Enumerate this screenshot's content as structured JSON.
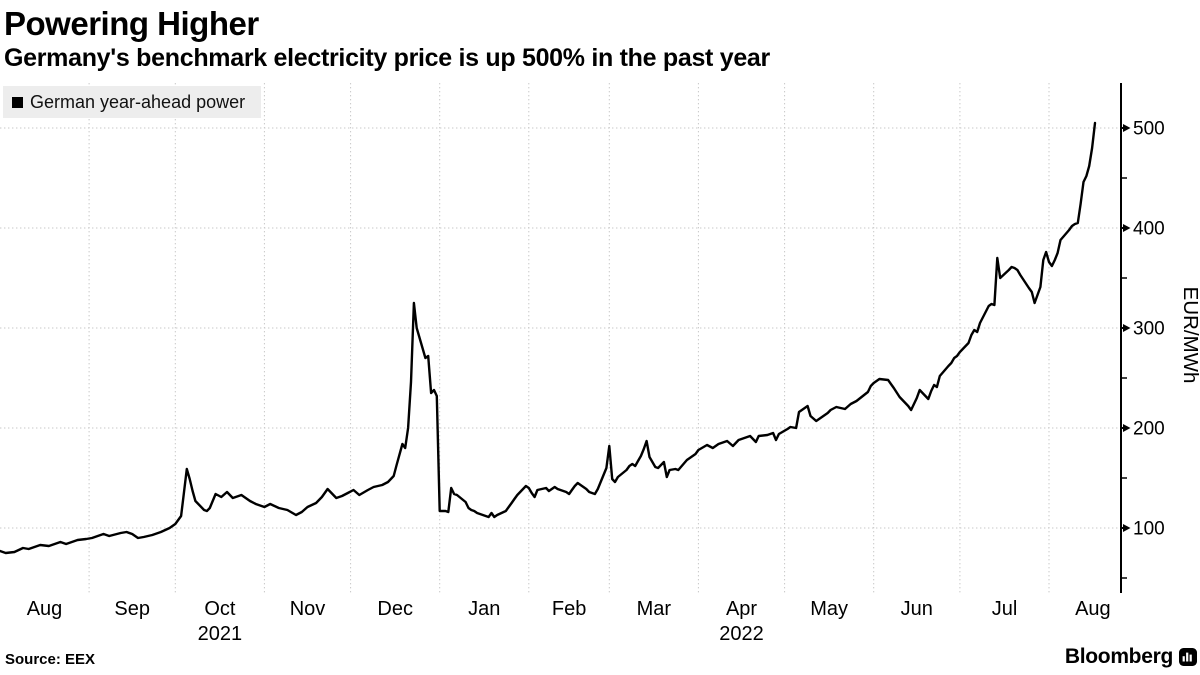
{
  "header": {
    "title": "Powering Higher",
    "subtitle": "Germany's benchmark electricity price is up 500% in the past year"
  },
  "legend": {
    "swatch_icon": "black-square",
    "label": "German year-ahead power"
  },
  "footer": {
    "source": "Source: EEX",
    "brand": "Bloomberg",
    "brand_icon": "bloomberg-terminal-icon"
  },
  "colors": {
    "background": "#ffffff",
    "line": "#000000",
    "grid": "#c7c7c7",
    "axis": "#000000",
    "legend_bg": "#ededed",
    "text": "#000000"
  },
  "chart_data": {
    "type": "line",
    "title": "Powering Higher",
    "subtitle": "Germany's benchmark electricity price is up 500% in the past year",
    "series_name": "German year-ahead power",
    "unit": "EUR/MWh",
    "ylabel": "EUR/MWh",
    "legend_position": "top-left",
    "grid": "dotted",
    "y_axis": {
      "side": "right",
      "ticks": [
        100,
        200,
        300,
        400,
        500
      ],
      "minor_ticks": [
        50,
        150,
        250,
        350,
        450
      ],
      "range_shown": [
        35,
        545
      ]
    },
    "x_axis": {
      "start": "2021-08-01",
      "end": "2022-08-17",
      "month_labels": [
        "Aug",
        "Sep",
        "Oct",
        "Nov",
        "Dec",
        "Jan",
        "Feb",
        "Mar",
        "Apr",
        "May",
        "Jun",
        "Jul",
        "Aug"
      ],
      "year_labels": [
        {
          "text": "2021",
          "month_index": 2
        },
        {
          "text": "2022",
          "month_index": 8
        }
      ]
    },
    "points": [
      [
        "2021-08-01",
        77
      ],
      [
        "2021-08-03",
        75
      ],
      [
        "2021-08-06",
        76
      ],
      [
        "2021-08-09",
        80
      ],
      [
        "2021-08-11",
        79
      ],
      [
        "2021-08-15",
        83
      ],
      [
        "2021-08-18",
        82
      ],
      [
        "2021-08-22",
        86
      ],
      [
        "2021-08-24",
        84
      ],
      [
        "2021-08-28",
        88
      ],
      [
        "2021-08-31",
        89
      ],
      [
        "2021-09-02",
        90
      ],
      [
        "2021-09-04",
        92
      ],
      [
        "2021-09-06",
        94
      ],
      [
        "2021-09-08",
        92
      ],
      [
        "2021-09-12",
        95
      ],
      [
        "2021-09-14",
        96
      ],
      [
        "2021-09-16",
        94
      ],
      [
        "2021-09-18",
        90
      ],
      [
        "2021-09-20",
        91
      ],
      [
        "2021-09-23",
        93
      ],
      [
        "2021-09-26",
        96
      ],
      [
        "2021-09-29",
        100
      ],
      [
        "2021-10-01",
        104
      ],
      [
        "2021-10-03",
        112
      ],
      [
        "2021-10-04",
        135
      ],
      [
        "2021-10-05",
        159
      ],
      [
        "2021-10-06",
        149
      ],
      [
        "2021-10-07",
        137
      ],
      [
        "2021-10-08",
        127
      ],
      [
        "2021-10-11",
        118
      ],
      [
        "2021-10-12",
        117
      ],
      [
        "2021-10-13",
        120
      ],
      [
        "2021-10-15",
        134
      ],
      [
        "2021-10-17",
        131
      ],
      [
        "2021-10-19",
        136
      ],
      [
        "2021-10-21",
        130
      ],
      [
        "2021-10-24",
        133
      ],
      [
        "2021-10-27",
        127
      ],
      [
        "2021-10-29",
        124
      ],
      [
        "2021-11-01",
        121
      ],
      [
        "2021-11-03",
        124
      ],
      [
        "2021-11-06",
        120
      ],
      [
        "2021-11-09",
        118
      ],
      [
        "2021-11-12",
        113
      ],
      [
        "2021-11-14",
        116
      ],
      [
        "2021-11-16",
        121
      ],
      [
        "2021-11-19",
        125
      ],
      [
        "2021-11-21",
        131
      ],
      [
        "2021-11-23",
        139
      ],
      [
        "2021-11-26",
        130
      ],
      [
        "2021-11-28",
        132
      ],
      [
        "2021-11-30",
        135
      ],
      [
        "2021-12-02",
        138
      ],
      [
        "2021-12-04",
        133
      ],
      [
        "2021-12-07",
        138
      ],
      [
        "2021-12-09",
        141
      ],
      [
        "2021-12-12",
        143
      ],
      [
        "2021-12-14",
        146
      ],
      [
        "2021-12-16",
        152
      ],
      [
        "2021-12-17",
        163
      ],
      [
        "2021-12-19",
        184
      ],
      [
        "2021-12-20",
        180
      ],
      [
        "2021-12-21",
        200
      ],
      [
        "2021-12-22",
        246
      ],
      [
        "2021-12-23",
        325
      ],
      [
        "2021-12-24",
        300
      ],
      [
        "2021-12-27",
        270
      ],
      [
        "2021-12-28",
        272
      ],
      [
        "2021-12-29",
        235
      ],
      [
        "2021-12-30",
        238
      ],
      [
        "2021-12-31",
        232
      ],
      [
        "2022-01-01",
        117
      ],
      [
        "2022-01-03",
        117
      ],
      [
        "2022-01-04",
        116
      ],
      [
        "2022-01-05",
        140
      ],
      [
        "2022-01-06",
        134
      ],
      [
        "2022-01-07",
        133
      ],
      [
        "2022-01-10",
        126
      ],
      [
        "2022-01-11",
        120
      ],
      [
        "2022-01-12",
        118
      ],
      [
        "2022-01-13",
        117
      ],
      [
        "2022-01-14",
        115
      ],
      [
        "2022-01-17",
        112
      ],
      [
        "2022-01-18",
        111
      ],
      [
        "2022-01-19",
        115
      ],
      [
        "2022-01-20",
        111
      ],
      [
        "2022-01-21",
        113
      ],
      [
        "2022-01-24",
        117
      ],
      [
        "2022-01-25",
        121
      ],
      [
        "2022-01-26",
        125
      ],
      [
        "2022-01-27",
        129
      ],
      [
        "2022-01-28",
        133
      ],
      [
        "2022-01-31",
        142
      ],
      [
        "2022-02-01",
        140
      ],
      [
        "2022-02-02",
        135
      ],
      [
        "2022-02-03",
        131
      ],
      [
        "2022-02-04",
        138
      ],
      [
        "2022-02-07",
        140
      ],
      [
        "2022-02-08",
        137
      ],
      [
        "2022-02-09",
        139
      ],
      [
        "2022-02-10",
        141
      ],
      [
        "2022-02-11",
        139
      ],
      [
        "2022-02-14",
        136
      ],
      [
        "2022-02-15",
        134
      ],
      [
        "2022-02-16",
        138
      ],
      [
        "2022-02-17",
        142
      ],
      [
        "2022-02-18",
        145
      ],
      [
        "2022-02-21",
        139
      ],
      [
        "2022-02-22",
        136
      ],
      [
        "2022-02-23",
        135
      ],
      [
        "2022-02-24",
        134
      ],
      [
        "2022-02-25",
        139
      ],
      [
        "2022-02-28",
        160
      ],
      [
        "2022-03-01",
        182
      ],
      [
        "2022-03-02",
        149
      ],
      [
        "2022-03-03",
        146
      ],
      [
        "2022-03-04",
        151
      ],
      [
        "2022-03-07",
        158
      ],
      [
        "2022-03-08",
        162
      ],
      [
        "2022-03-09",
        164
      ],
      [
        "2022-03-10",
        162
      ],
      [
        "2022-03-11",
        167
      ],
      [
        "2022-03-12",
        172
      ],
      [
        "2022-03-13",
        179
      ],
      [
        "2022-03-14",
        187
      ],
      [
        "2022-03-15",
        171
      ],
      [
        "2022-03-16",
        166
      ],
      [
        "2022-03-17",
        161
      ],
      [
        "2022-03-18",
        160
      ],
      [
        "2022-03-20",
        166
      ],
      [
        "2022-03-21",
        151
      ],
      [
        "2022-03-22",
        158
      ],
      [
        "2022-03-24",
        159
      ],
      [
        "2022-03-25",
        158
      ],
      [
        "2022-03-28",
        168
      ],
      [
        "2022-03-29",
        170
      ],
      [
        "2022-03-31",
        174
      ],
      [
        "2022-04-01",
        178
      ],
      [
        "2022-04-04",
        183
      ],
      [
        "2022-04-06",
        180
      ],
      [
        "2022-04-08",
        184
      ],
      [
        "2022-04-11",
        187
      ],
      [
        "2022-04-13",
        182
      ],
      [
        "2022-04-15",
        188
      ],
      [
        "2022-04-19",
        192
      ],
      [
        "2022-04-21",
        186
      ],
      [
        "2022-04-22",
        192
      ],
      [
        "2022-04-25",
        193
      ],
      [
        "2022-04-27",
        195
      ],
      [
        "2022-04-28",
        188
      ],
      [
        "2022-04-29",
        194
      ],
      [
        "2022-05-02",
        199
      ],
      [
        "2022-05-03",
        201
      ],
      [
        "2022-05-05",
        200
      ],
      [
        "2022-05-06",
        216
      ],
      [
        "2022-05-09",
        222
      ],
      [
        "2022-05-10",
        212
      ],
      [
        "2022-05-12",
        207
      ],
      [
        "2022-05-16",
        215
      ],
      [
        "2022-05-17",
        218
      ],
      [
        "2022-05-19",
        221
      ],
      [
        "2022-05-22",
        219
      ],
      [
        "2022-05-24",
        224
      ],
      [
        "2022-05-26",
        227
      ],
      [
        "2022-05-30",
        236
      ],
      [
        "2022-05-31",
        242
      ],
      [
        "2022-06-01",
        245
      ],
      [
        "2022-06-03",
        249
      ],
      [
        "2022-06-06",
        248
      ],
      [
        "2022-06-08",
        240
      ],
      [
        "2022-06-10",
        231
      ],
      [
        "2022-06-13",
        222
      ],
      [
        "2022-06-14",
        218
      ],
      [
        "2022-06-16",
        230
      ],
      [
        "2022-06-17",
        238
      ],
      [
        "2022-06-20",
        229
      ],
      [
        "2022-06-21",
        237
      ],
      [
        "2022-06-22",
        243
      ],
      [
        "2022-06-23",
        241
      ],
      [
        "2022-06-24",
        252
      ],
      [
        "2022-06-27",
        262
      ],
      [
        "2022-06-28",
        265
      ],
      [
        "2022-06-29",
        270
      ],
      [
        "2022-06-30",
        272
      ],
      [
        "2022-07-01",
        276
      ],
      [
        "2022-07-04",
        285
      ],
      [
        "2022-07-05",
        293
      ],
      [
        "2022-07-06",
        298
      ],
      [
        "2022-07-07",
        296
      ],
      [
        "2022-07-08",
        305
      ],
      [
        "2022-07-11",
        322
      ],
      [
        "2022-07-12",
        324
      ],
      [
        "2022-07-13",
        323
      ],
      [
        "2022-07-14",
        370
      ],
      [
        "2022-07-15",
        350
      ],
      [
        "2022-07-18",
        358
      ],
      [
        "2022-07-19",
        361
      ],
      [
        "2022-07-20",
        360
      ],
      [
        "2022-07-21",
        358
      ],
      [
        "2022-07-22",
        353
      ],
      [
        "2022-07-25",
        340
      ],
      [
        "2022-07-26",
        336
      ],
      [
        "2022-07-27",
        325
      ],
      [
        "2022-07-28",
        333
      ],
      [
        "2022-07-29",
        341
      ],
      [
        "2022-07-30",
        368
      ],
      [
        "2022-07-31",
        376
      ],
      [
        "2022-08-01",
        366
      ],
      [
        "2022-08-02",
        362
      ],
      [
        "2022-08-03",
        368
      ],
      [
        "2022-08-04",
        375
      ],
      [
        "2022-08-05",
        388
      ],
      [
        "2022-08-08",
        398
      ],
      [
        "2022-08-09",
        402
      ],
      [
        "2022-08-10",
        404
      ],
      [
        "2022-08-11",
        405
      ],
      [
        "2022-08-12",
        424
      ],
      [
        "2022-08-13",
        446
      ],
      [
        "2022-08-14",
        452
      ],
      [
        "2022-08-15",
        462
      ],
      [
        "2022-08-16",
        480
      ],
      [
        "2022-08-17",
        505
      ]
    ]
  }
}
